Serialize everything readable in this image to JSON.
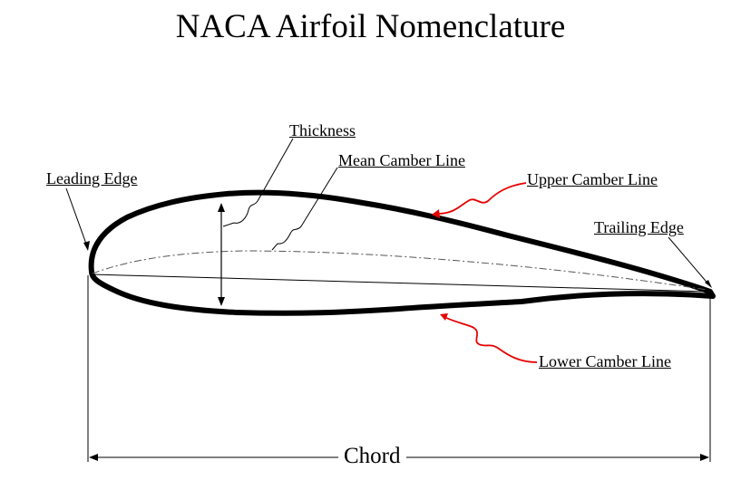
{
  "title": "NACA Airfoil Nomenclature",
  "labels": {
    "thickness": "Thickness",
    "mean_camber_line": "Mean Camber Line",
    "leading_edge": "Leading Edge",
    "upper_camber_line": "Upper Camber Line",
    "trailing_edge": "Trailing Edge",
    "lower_camber_line": "Lower Camber Line",
    "chord": "Chord"
  },
  "colors": {
    "outline": "#000000",
    "camber_pointer": "#e60000",
    "background": "#ffffff"
  }
}
